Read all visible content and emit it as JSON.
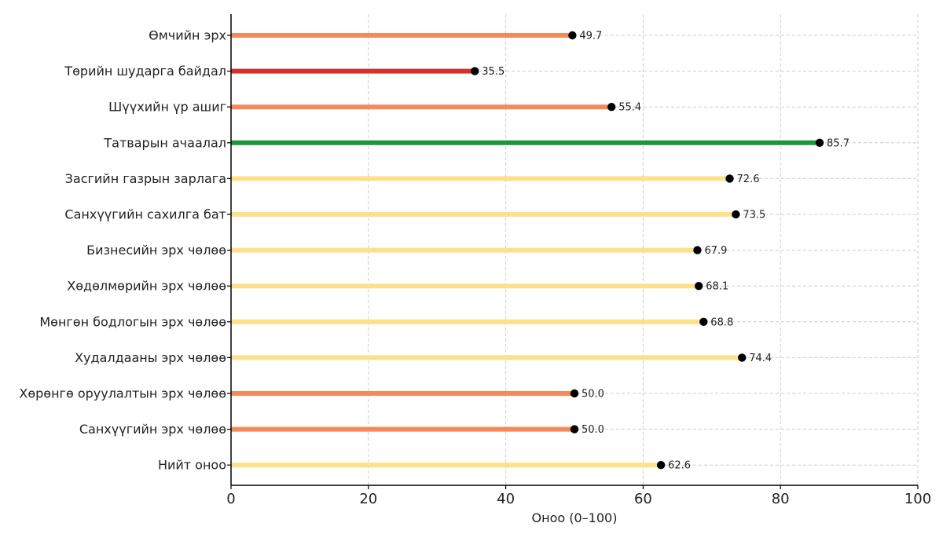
{
  "chart_data": {
    "type": "bar",
    "orientation": "horizontal",
    "style": "lollipop",
    "categories": [
      "Өмчийн эрх",
      "Төрийн шударга байдал",
      "Шүүхийн үр ашиг",
      "Татварын ачаалал",
      "Засгийн газрын зарлага",
      "Санхүүгийн сахилга бат",
      "Бизнесийн эрх чөлөө",
      "Хөдөлмөрийн эрх чөлөө",
      "Мөнгөн бодлогын эрх чөлөө",
      "Худалдааны эрх чөлөө",
      "Хөрөнгө оруулалтын эрх чөлөө",
      "Санхүүгийн эрх чөлөө",
      "Нийт оноо"
    ],
    "values": [
      49.7,
      35.5,
      55.4,
      85.7,
      72.6,
      73.5,
      67.9,
      68.1,
      68.8,
      74.4,
      50.0,
      50.0,
      62.6
    ],
    "value_labels": [
      "49.7",
      "35.5",
      "55.4",
      "85.7",
      "72.6",
      "73.5",
      "67.9",
      "68.1",
      "68.8",
      "74.4",
      "50.0",
      "50.0",
      "62.6"
    ],
    "bar_colors": [
      "#f4895a",
      "#d7302a",
      "#f4895a",
      "#1a9641",
      "#fedf8a",
      "#fedf8a",
      "#fedf8a",
      "#fedf8a",
      "#fedf8a",
      "#fedf8a",
      "#f4895a",
      "#f4895a",
      "#fedf8a"
    ],
    "marker_color": "#000000",
    "xlabel": "Оноо (0–100)",
    "xlim": [
      0,
      100
    ],
    "xticks": [
      0,
      20,
      40,
      60,
      80,
      100
    ],
    "xtick_labels": [
      "0",
      "20",
      "40",
      "60",
      "80",
      "100"
    ],
    "grid": true
  }
}
